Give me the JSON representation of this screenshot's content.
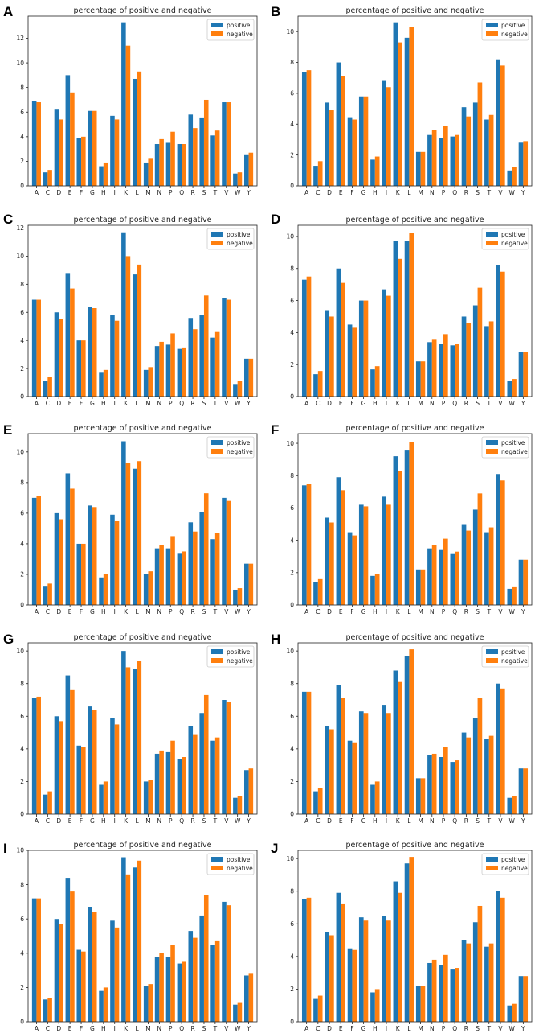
{
  "chart_data": [
    {
      "panel": "A",
      "type": "bar",
      "title": "percentage of positive and negative",
      "categories": [
        "A",
        "C",
        "D",
        "E",
        "F",
        "G",
        "H",
        "I",
        "K",
        "L",
        "M",
        "N",
        "P",
        "Q",
        "R",
        "S",
        "T",
        "V",
        "W",
        "Y"
      ],
      "ylim": [
        0,
        13.8
      ],
      "yticks": [
        0,
        2,
        4,
        6,
        8,
        10,
        12
      ],
      "series": [
        {
          "name": "positive",
          "color": "#1f77b4",
          "values": [
            6.9,
            1.1,
            6.2,
            9.0,
            3.9,
            6.1,
            1.6,
            5.7,
            13.3,
            8.7,
            1.9,
            3.4,
            3.5,
            3.4,
            5.8,
            5.5,
            4.1,
            6.8,
            1.0,
            2.5
          ]
        },
        {
          "name": "negative",
          "color": "#ff7f0e",
          "values": [
            6.8,
            1.3,
            5.4,
            7.6,
            4.0,
            6.1,
            1.9,
            5.4,
            11.4,
            9.3,
            2.2,
            3.8,
            4.4,
            3.4,
            4.7,
            7.0,
            4.5,
            6.8,
            1.1,
            2.7
          ]
        }
      ]
    },
    {
      "panel": "B",
      "type": "bar",
      "title": "percentage of positive and negative",
      "categories": [
        "A",
        "C",
        "D",
        "E",
        "F",
        "G",
        "H",
        "I",
        "K",
        "L",
        "M",
        "N",
        "P",
        "Q",
        "R",
        "S",
        "T",
        "V",
        "W",
        "Y"
      ],
      "ylim": [
        0,
        11.0
      ],
      "yticks": [
        0,
        2,
        4,
        6,
        8,
        10
      ],
      "series": [
        {
          "name": "positive",
          "color": "#1f77b4",
          "values": [
            7.4,
            1.3,
            5.4,
            8.0,
            4.4,
            5.8,
            1.7,
            6.8,
            10.6,
            9.6,
            2.2,
            3.3,
            3.1,
            3.2,
            5.1,
            5.4,
            4.3,
            8.2,
            1.0,
            2.8
          ]
        },
        {
          "name": "negative",
          "color": "#ff7f0e",
          "values": [
            7.5,
            1.6,
            4.9,
            7.1,
            4.3,
            5.8,
            1.9,
            6.4,
            9.3,
            10.3,
            2.2,
            3.6,
            3.9,
            3.3,
            4.5,
            6.7,
            4.6,
            7.8,
            1.2,
            2.9
          ]
        }
      ]
    },
    {
      "panel": "C",
      "type": "bar",
      "title": "percentage of positive and negative",
      "categories": [
        "A",
        "C",
        "D",
        "E",
        "F",
        "G",
        "H",
        "I",
        "K",
        "L",
        "M",
        "N",
        "P",
        "Q",
        "R",
        "S",
        "T",
        "V",
        "W",
        "Y"
      ],
      "ylim": [
        0,
        12.2
      ],
      "yticks": [
        0,
        2,
        4,
        6,
        8,
        10,
        12
      ],
      "series": [
        {
          "name": "positive",
          "color": "#1f77b4",
          "values": [
            6.9,
            1.1,
            6.0,
            8.8,
            4.0,
            6.4,
            1.7,
            5.8,
            11.7,
            8.7,
            1.9,
            3.6,
            3.7,
            3.4,
            5.6,
            5.8,
            4.2,
            7.0,
            0.9,
            2.7
          ]
        },
        {
          "name": "negative",
          "color": "#ff7f0e",
          "values": [
            6.9,
            1.4,
            5.5,
            7.7,
            4.0,
            6.3,
            1.9,
            5.4,
            10.0,
            9.4,
            2.1,
            3.9,
            4.5,
            3.5,
            4.8,
            7.2,
            4.6,
            6.9,
            1.1,
            2.7
          ]
        }
      ]
    },
    {
      "panel": "D",
      "type": "bar",
      "title": "percentage of positive and negative",
      "categories": [
        "A",
        "C",
        "D",
        "E",
        "F",
        "G",
        "H",
        "I",
        "K",
        "L",
        "M",
        "N",
        "P",
        "Q",
        "R",
        "S",
        "T",
        "V",
        "W",
        "Y"
      ],
      "ylim": [
        0,
        10.7
      ],
      "yticks": [
        0,
        2,
        4,
        6,
        8,
        10
      ],
      "series": [
        {
          "name": "positive",
          "color": "#1f77b4",
          "values": [
            7.3,
            1.4,
            5.4,
            8.0,
            4.5,
            6.0,
            1.7,
            6.7,
            9.7,
            9.7,
            2.2,
            3.4,
            3.3,
            3.2,
            5.0,
            5.7,
            4.4,
            8.2,
            1.0,
            2.8
          ]
        },
        {
          "name": "negative",
          "color": "#ff7f0e",
          "values": [
            7.5,
            1.6,
            5.0,
            7.1,
            4.3,
            6.0,
            1.9,
            6.3,
            8.6,
            10.2,
            2.2,
            3.6,
            3.9,
            3.3,
            4.6,
            6.8,
            4.7,
            7.8,
            1.1,
            2.8
          ]
        }
      ]
    },
    {
      "panel": "E",
      "type": "bar",
      "title": "percentage of positive and negative",
      "categories": [
        "A",
        "C",
        "D",
        "E",
        "F",
        "G",
        "H",
        "I",
        "K",
        "L",
        "M",
        "N",
        "P",
        "Q",
        "R",
        "S",
        "T",
        "V",
        "W",
        "Y"
      ],
      "ylim": [
        0,
        11.2
      ],
      "yticks": [
        0,
        2,
        4,
        6,
        8,
        10
      ],
      "series": [
        {
          "name": "positive",
          "color": "#1f77b4",
          "values": [
            7.0,
            1.2,
            6.0,
            8.6,
            4.0,
            6.5,
            1.8,
            5.9,
            10.7,
            8.9,
            2.0,
            3.7,
            3.7,
            3.4,
            5.4,
            6.1,
            4.3,
            7.0,
            1.0,
            2.7
          ]
        },
        {
          "name": "negative",
          "color": "#ff7f0e",
          "values": [
            7.1,
            1.4,
            5.6,
            7.6,
            4.0,
            6.4,
            2.0,
            5.5,
            9.3,
            9.4,
            2.2,
            3.9,
            4.5,
            3.5,
            4.8,
            7.3,
            4.7,
            6.8,
            1.1,
            2.7
          ]
        }
      ]
    },
    {
      "panel": "F",
      "type": "bar",
      "title": "percentage of positive and negative",
      "categories": [
        "A",
        "C",
        "D",
        "E",
        "F",
        "G",
        "H",
        "I",
        "K",
        "L",
        "M",
        "N",
        "P",
        "Q",
        "R",
        "S",
        "T",
        "V",
        "W",
        "Y"
      ],
      "ylim": [
        0,
        10.6
      ],
      "yticks": [
        0,
        2,
        4,
        6,
        8,
        10
      ],
      "series": [
        {
          "name": "positive",
          "color": "#1f77b4",
          "values": [
            7.4,
            1.4,
            5.4,
            7.9,
            4.5,
            6.2,
            1.8,
            6.7,
            9.2,
            9.6,
            2.2,
            3.5,
            3.4,
            3.2,
            5.0,
            5.9,
            4.5,
            8.1,
            1.0,
            2.8
          ]
        },
        {
          "name": "negative",
          "color": "#ff7f0e",
          "values": [
            7.5,
            1.6,
            5.1,
            7.1,
            4.3,
            6.1,
            1.9,
            6.2,
            8.3,
            10.1,
            2.2,
            3.7,
            4.1,
            3.3,
            4.6,
            6.9,
            4.8,
            7.7,
            1.1,
            2.8
          ]
        }
      ]
    },
    {
      "panel": "G",
      "type": "bar",
      "title": "percentage of positive and negative",
      "categories": [
        "A",
        "C",
        "D",
        "E",
        "F",
        "G",
        "H",
        "I",
        "K",
        "L",
        "M",
        "N",
        "P",
        "Q",
        "R",
        "S",
        "T",
        "V",
        "W",
        "Y"
      ],
      "ylim": [
        0,
        10.5
      ],
      "yticks": [
        0,
        2,
        4,
        6,
        8,
        10
      ],
      "series": [
        {
          "name": "positive",
          "color": "#1f77b4",
          "values": [
            7.1,
            1.2,
            6.0,
            8.5,
            4.2,
            6.6,
            1.8,
            5.9,
            10.0,
            8.9,
            2.0,
            3.7,
            3.8,
            3.4,
            5.4,
            6.2,
            4.5,
            7.0,
            1.0,
            2.7
          ]
        },
        {
          "name": "negative",
          "color": "#ff7f0e",
          "values": [
            7.2,
            1.4,
            5.7,
            7.6,
            4.1,
            6.4,
            2.0,
            5.5,
            9.0,
            9.4,
            2.1,
            3.9,
            4.5,
            3.5,
            4.9,
            7.3,
            4.7,
            6.9,
            1.1,
            2.8
          ]
        }
      ]
    },
    {
      "panel": "H",
      "type": "bar",
      "title": "percentage of positive and negative",
      "categories": [
        "A",
        "C",
        "D",
        "E",
        "F",
        "G",
        "H",
        "I",
        "K",
        "L",
        "M",
        "N",
        "P",
        "Q",
        "R",
        "S",
        "T",
        "V",
        "W",
        "Y"
      ],
      "ylim": [
        0,
        10.5
      ],
      "yticks": [
        0,
        2,
        4,
        6,
        8,
        10
      ],
      "series": [
        {
          "name": "positive",
          "color": "#1f77b4",
          "values": [
            7.5,
            1.4,
            5.4,
            7.9,
            4.5,
            6.3,
            1.8,
            6.7,
            8.8,
            9.7,
            2.2,
            3.6,
            3.5,
            3.2,
            5.0,
            5.9,
            4.6,
            8.0,
            1.0,
            2.8
          ]
        },
        {
          "name": "negative",
          "color": "#ff7f0e",
          "values": [
            7.5,
            1.6,
            5.2,
            7.1,
            4.4,
            6.2,
            2.0,
            6.2,
            8.1,
            10.1,
            2.2,
            3.7,
            4.1,
            3.3,
            4.7,
            7.1,
            4.8,
            7.7,
            1.1,
            2.8
          ]
        }
      ]
    },
    {
      "panel": "I",
      "type": "bar",
      "title": "percentage of positive and negative",
      "categories": [
        "A",
        "C",
        "D",
        "E",
        "F",
        "G",
        "H",
        "I",
        "K",
        "L",
        "M",
        "N",
        "P",
        "Q",
        "R",
        "S",
        "T",
        "V",
        "W",
        "Y"
      ],
      "ylim": [
        0,
        10.0
      ],
      "yticks": [
        0,
        2,
        4,
        6,
        8,
        10
      ],
      "series": [
        {
          "name": "positive",
          "color": "#1f77b4",
          "values": [
            7.2,
            1.3,
            6.0,
            8.4,
            4.2,
            6.7,
            1.8,
            5.9,
            9.6,
            9.0,
            2.1,
            3.8,
            3.8,
            3.4,
            5.3,
            6.2,
            4.5,
            7.0,
            1.0,
            2.7
          ]
        },
        {
          "name": "negative",
          "color": "#ff7f0e",
          "values": [
            7.2,
            1.4,
            5.7,
            7.6,
            4.1,
            6.4,
            2.0,
            5.5,
            8.6,
            9.4,
            2.2,
            4.0,
            4.5,
            3.5,
            4.9,
            7.4,
            4.7,
            6.8,
            1.1,
            2.8
          ]
        }
      ]
    },
    {
      "panel": "J",
      "type": "bar",
      "title": "percentage of positive and negative",
      "categories": [
        "A",
        "C",
        "D",
        "E",
        "F",
        "G",
        "H",
        "I",
        "K",
        "L",
        "M",
        "N",
        "P",
        "Q",
        "R",
        "S",
        "T",
        "V",
        "W",
        "Y"
      ],
      "ylim": [
        0,
        10.5
      ],
      "yticks": [
        0,
        2,
        4,
        6,
        8,
        10
      ],
      "series": [
        {
          "name": "positive",
          "color": "#1f77b4",
          "values": [
            7.5,
            1.4,
            5.5,
            7.9,
            4.5,
            6.4,
            1.8,
            6.5,
            8.6,
            9.7,
            2.2,
            3.6,
            3.5,
            3.2,
            5.0,
            6.1,
            4.6,
            8.0,
            1.0,
            2.8
          ]
        },
        {
          "name": "negative",
          "color": "#ff7f0e",
          "values": [
            7.6,
            1.6,
            5.3,
            7.2,
            4.4,
            6.2,
            2.0,
            6.2,
            7.9,
            10.1,
            2.2,
            3.8,
            4.1,
            3.3,
            4.8,
            7.1,
            4.8,
            7.6,
            1.1,
            2.8
          ]
        }
      ]
    }
  ]
}
